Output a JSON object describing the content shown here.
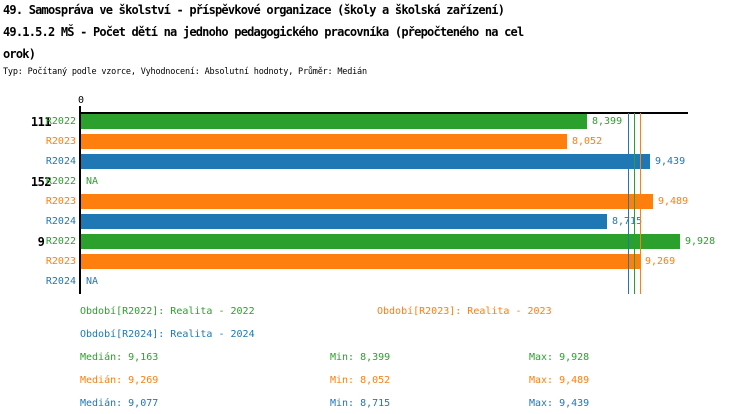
{
  "title": {
    "line1": "49. Samospráva ve školství - příspěvkové organizace (školy a školská zařízení)",
    "line2": "49.1.5.2 MŠ - Počet dětí na jednoho pedagogického pracovníka (přepočteného na cel",
    "line3": "orok)",
    "meta": "Typ: Počítaný podle vzorce, Vyhodnocení: Absolutní hodnoty, Průměr: Medián"
  },
  "colors": {
    "R2022": "#2ca02c",
    "R2023": "#ff7f0e",
    "R2024": "#1f77b4",
    "axis": "#000000"
  },
  "chart_data": {
    "type": "bar",
    "orientation": "horizontal",
    "title": "49.1.5.2 MŠ - Počet dětí na jednoho pedagogického pracovníka (přepočteného na celorok)",
    "xlabel": "",
    "ylabel": "",
    "xlim": [
      0,
      10.1
    ],
    "x_tick_labels": [
      "0"
    ],
    "grid": false,
    "na_text": "NA",
    "groups": [
      {
        "label": "111",
        "rows": [
          {
            "series": "R2022",
            "value": 8.399,
            "value_label": "8,399"
          },
          {
            "series": "R2023",
            "value": 8.052,
            "value_label": "8,052"
          },
          {
            "series": "R2024",
            "value": 9.439,
            "value_label": "9,439"
          }
        ]
      },
      {
        "label": "152",
        "rows": [
          {
            "series": "R2022",
            "value": null,
            "value_label": "NA"
          },
          {
            "series": "R2023",
            "value": 9.489,
            "value_label": "9,489"
          },
          {
            "series": "R2024",
            "value": 8.715,
            "value_label": "8,715"
          }
        ]
      },
      {
        "label": "9",
        "rows": [
          {
            "series": "R2022",
            "value": 9.928,
            "value_label": "9,928"
          },
          {
            "series": "R2023",
            "value": 9.269,
            "value_label": "9,269"
          },
          {
            "series": "R2024",
            "value": null,
            "value_label": "NA"
          }
        ]
      }
    ],
    "median_lines": [
      {
        "series": "R2022",
        "value": 9.163
      },
      {
        "series": "R2023",
        "value": 9.269
      },
      {
        "series": "R2024",
        "value": 9.077
      }
    ],
    "legend": [
      {
        "series": "R2022",
        "text": "Období[R2022]: Realita - 2022"
      },
      {
        "series": "R2023",
        "text": "Období[R2023]: Realita - 2023"
      },
      {
        "series": "R2024",
        "text": "Období[R2024]: Realita - 2024"
      }
    ],
    "stats": [
      {
        "series": "R2022",
        "median": "Medián: 9,163",
        "min": "Min: 8,399",
        "max": "Max: 9,928"
      },
      {
        "series": "R2023",
        "median": "Medián: 9,269",
        "min": "Min: 8,052",
        "max": "Max: 9,489"
      },
      {
        "series": "R2024",
        "median": "Medián: 9,077",
        "min": "Min: 8,715",
        "max": "Max: 9,439"
      }
    ]
  }
}
